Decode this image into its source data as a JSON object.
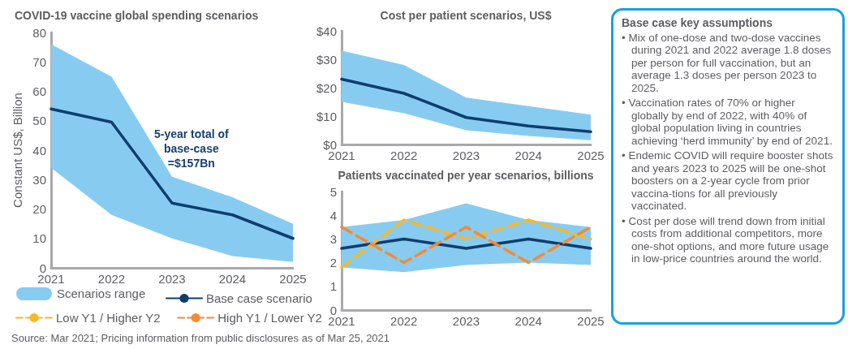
{
  "chart_data": [
    {
      "type": "line",
      "title": "COVID-19 vaccine global spending scenarios",
      "ylabel": "Constant US$, Billion",
      "categories": [
        "2021",
        "2022",
        "2023",
        "2024",
        "2025"
      ],
      "ylim": [
        0,
        80
      ],
      "yticks": [
        0,
        10,
        20,
        30,
        40,
        50,
        60,
        70,
        80
      ],
      "grid": false,
      "legend": "bottom",
      "legend_title": "Scenarios range",
      "marker": "none",
      "series": [
        {
          "name": "Base case scenario",
          "type": "line",
          "color": "#0f3d6e",
          "line_style": "solid",
          "values": [
            54,
            49.5,
            22,
            18,
            10
          ],
          "lower": [
            34,
            18,
            10,
            4,
            2
          ],
          "upper": [
            76,
            65,
            31,
            24,
            15
          ]
        }
      ],
      "annotations": [
        "5-year total of\nbase-case\n=$157Bn",
        "Source: Mar 2021; Pricing information from public disclosures as of Mar 25, 2021"
      ]
    },
    {
      "type": "line",
      "title": "Cost per patient scenarios, US$",
      "categories": [
        "2021",
        "2022",
        "2023",
        "2024",
        "2025"
      ],
      "ylim": [
        0,
        40
      ],
      "yticks": [
        {
          "value": 0,
          "label": "$0"
        },
        {
          "value": 10,
          "label": "$10"
        },
        {
          "value": 20,
          "label": "$20"
        },
        {
          "value": 30,
          "label": "$30"
        },
        {
          "value": 40,
          "label": "$40"
        }
      ],
      "grid": false,
      "legend": "bottom",
      "marker": "none",
      "series": [
        {
          "name": "Base case scenario",
          "type": "line",
          "color": "#0f3d6e",
          "line_style": "solid",
          "values": [
            23,
            18,
            9.5,
            6.5,
            4.5
          ],
          "lower": [
            15,
            11,
            5,
            3,
            1.5
          ],
          "upper": [
            33,
            28,
            16.5,
            13.5,
            10.5
          ]
        }
      ]
    },
    {
      "type": "line",
      "title": "Patients vaccinated per year scenarios, billions",
      "categories": [
        "2021",
        "2022",
        "2023",
        "2024",
        "2025"
      ],
      "ylim": [
        0,
        5
      ],
      "yticks": [
        0,
        1,
        2,
        3,
        4,
        5
      ],
      "grid": false,
      "legend": "bottom",
      "marker": "none",
      "series": [
        {
          "name": "Base case scenario",
          "type": "line",
          "color": "#0f3d6e",
          "line_style": "solid",
          "values": [
            2.6,
            3.0,
            2.6,
            3.0,
            2.6
          ],
          "lower": [
            1.8,
            1.6,
            1.9,
            2.0,
            1.9
          ],
          "upper": [
            3.5,
            3.8,
            4.5,
            3.8,
            3.5
          ]
        },
        {
          "name": "Low Y1 / Higher Y2",
          "type": "line",
          "color": "#fbb726",
          "line_style": "dashed",
          "values": [
            1.8,
            3.8,
            3.0,
            3.8,
            3.0
          ]
        },
        {
          "name": "High Y1 / Lower Y2",
          "type": "line",
          "color": "#f58a34",
          "line_style": "dashed",
          "values": [
            3.5,
            2.0,
            3.5,
            2.0,
            3.5
          ]
        }
      ]
    },
    {
      "type": "other",
      "title": "Base case key assumptions",
      "annotations": [
        "• Mix of one-dose and two-dose vaccines during 2021 and 2022 average 1.8 doses per person for full vaccination, but an average 1.3 doses per person 2023 to 2025.",
        "• Vaccination rates of 70% or higher globally by end of 2022, with 40% of global population living in countries achieving ‘herd immunity’ by end of 2021.",
        "• Endemic COVID will require booster shots and years 2023 to 2025 will be one-shot boosters on a 2-year cycle from prior vaccina-tions for all previously vaccinated.",
        "• Cost per dose will trend down from initial costs from additional competitors, more one-shot options, and more future usage in low-price countries around the world."
      ]
    }
  ]
}
